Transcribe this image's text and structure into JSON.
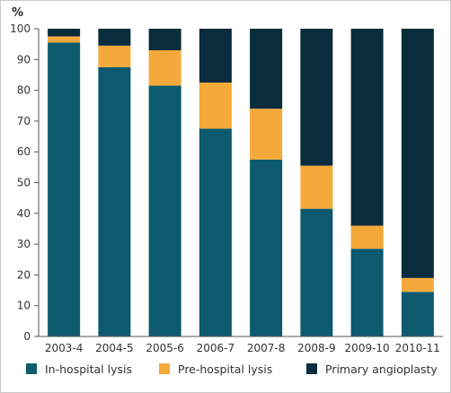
{
  "chart_data": {
    "type": "bar",
    "stacked": true,
    "title": "",
    "xlabel": "",
    "ylabel": "%",
    "ylim": [
      0,
      100
    ],
    "yticks": [
      0,
      10,
      20,
      30,
      40,
      50,
      60,
      70,
      80,
      90,
      100
    ],
    "grid": false,
    "legend_position": "bottom",
    "categories": [
      "2003-4",
      "2004-5",
      "2005-6",
      "2006-7",
      "2007-8",
      "2008-9",
      "2009-10",
      "2010-11"
    ],
    "series": [
      {
        "name": "In-hospital lysis",
        "color": "#0d5a6e",
        "values": [
          95.5,
          87.5,
          81.5,
          67.5,
          57.5,
          41.5,
          28.5,
          14.5
        ]
      },
      {
        "name": "Pre-hospital lysis",
        "color": "#f4a93a",
        "values": [
          2.0,
          7.0,
          11.5,
          15.0,
          16.5,
          14.0,
          7.5,
          4.5
        ]
      },
      {
        "name": "Primary angioplasty",
        "color": "#0a2d3d",
        "values": [
          2.5,
          5.5,
          7.0,
          17.5,
          26.0,
          44.5,
          64.0,
          81.0
        ]
      }
    ]
  }
}
